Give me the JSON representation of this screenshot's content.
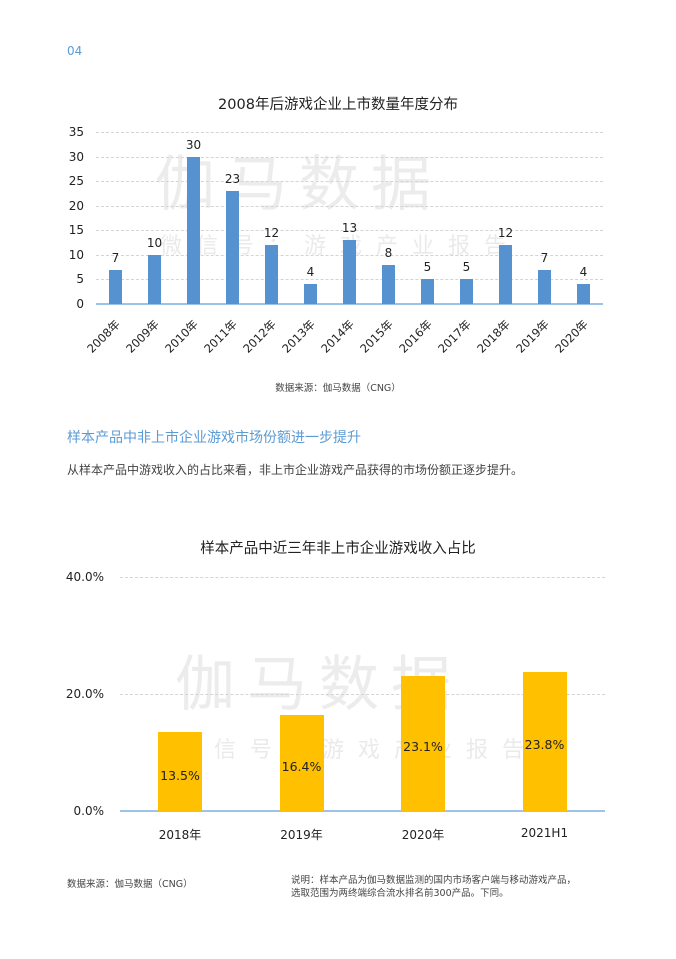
{
  "page": {
    "number": "04",
    "section_heading": "样本产品中非上市企业游戏市场份额进一步提升",
    "body_text": "从样本产品中游戏收入的占比来看，非上市企业游戏产品获得的市场份额正逐步提升。",
    "watermark": {
      "main": "伽马数据",
      "sub": "微信号：游戏产业报告"
    }
  },
  "chart1": {
    "source": "数据来源：伽马数据（CNG）"
  },
  "chart2": {
    "source": "数据来源：伽马数据（CNG）",
    "note_line1": "说明：样本产品为伽马数据监测的国内市场客户端与移动游戏产品，",
    "note_line2": "选取范围为两终端综合流水排名前300产品。下同。"
  },
  "colors": {
    "accent": "#5b9bd5",
    "bar_blue": "#5592cf",
    "bar_gold": "#ffc000",
    "axis_line": "#9dc3e6"
  },
  "chart_data": [
    {
      "type": "bar",
      "title": "2008年后游戏企业上市数量年度分布",
      "categories": [
        "2008年",
        "2009年",
        "2010年",
        "2011年",
        "2012年",
        "2013年",
        "2014年",
        "2015年",
        "2016年",
        "2017年",
        "2018年",
        "2019年",
        "2020年"
      ],
      "values": [
        7,
        10,
        30,
        23,
        12,
        4,
        13,
        8,
        5,
        5,
        12,
        7,
        4
      ],
      "labels": [
        "7",
        "10",
        "30",
        "23",
        "12",
        "4",
        "13",
        "8",
        "5",
        "5",
        "12",
        "7",
        "4"
      ],
      "xlabel": "",
      "ylabel": "",
      "ylim": [
        0,
        35
      ],
      "yticks": [
        "0",
        "5",
        "10",
        "15",
        "20",
        "25",
        "30",
        "35"
      ],
      "grid": true,
      "legend": "none",
      "color": "#5592cf"
    },
    {
      "type": "bar",
      "title": "样本产品中近三年非上市企业游戏收入占比",
      "categories": [
        "2018年",
        "2019年",
        "2020年",
        "2021H1"
      ],
      "values": [
        13.5,
        16.4,
        23.1,
        23.8
      ],
      "labels": [
        "13.5%",
        "16.4%",
        "23.1%",
        "23.8%"
      ],
      "xlabel": "",
      "ylabel": "",
      "ylim": [
        0,
        40
      ],
      "yticks": [
        "0.0%",
        "20.0%",
        "40.0%"
      ],
      "grid": true,
      "legend": "none",
      "color": "#ffc000"
    }
  ]
}
